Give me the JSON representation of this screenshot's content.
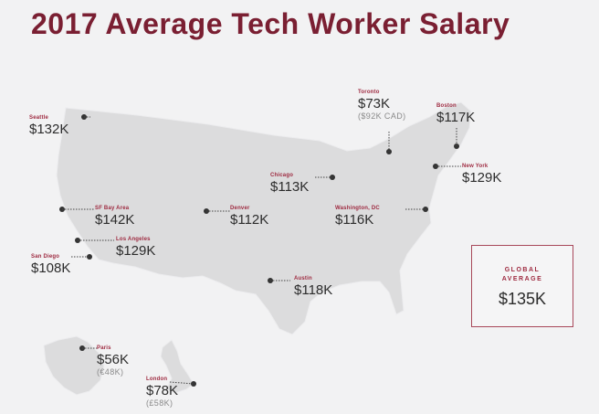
{
  "title": "2017 Average Tech Worker Salary",
  "colors": {
    "accent": "#7a1f32",
    "land": "#dcdcdd",
    "dot": "#333333",
    "background": "#f2f2f3"
  },
  "global": {
    "label": "GLOBAL AVERAGE",
    "value": "$135K"
  },
  "cities": {
    "seattle": {
      "name": "Seattle",
      "salary": "$132K"
    },
    "toronto": {
      "name": "Toronto",
      "salary": "$73K",
      "local": "($92K CAD)"
    },
    "boston": {
      "name": "Boston",
      "salary": "$117K"
    },
    "new_york": {
      "name": "New York",
      "salary": "$129K"
    },
    "chicago": {
      "name": "Chicago",
      "salary": "$113K"
    },
    "sf_bay_area": {
      "name": "SF Bay Area",
      "salary": "$142K"
    },
    "denver": {
      "name": "Denver",
      "salary": "$112K"
    },
    "washington": {
      "name": "Washington, DC",
      "salary": "$116K"
    },
    "los_angeles": {
      "name": "Los Angeles",
      "salary": "$129K"
    },
    "san_diego": {
      "name": "San Diego",
      "salary": "$108K"
    },
    "austin": {
      "name": "Austin",
      "salary": "$118K"
    },
    "paris": {
      "name": "Paris",
      "salary": "$56K",
      "local": "(€48K)"
    },
    "london": {
      "name": "London",
      "salary": "$78K",
      "local": "(£58K)"
    }
  }
}
